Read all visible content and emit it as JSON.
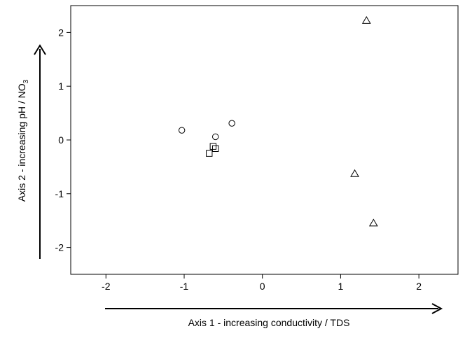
{
  "chart_data": {
    "type": "scatter",
    "title": "",
    "xlabel": "Axis 1 - increasing conductivity / TDS",
    "ylabel": "Axis 2 - increasing pH / NO",
    "ylabel_subscript": "3",
    "xlim": [
      -2.45,
      2.5
    ],
    "ylim": [
      -2.5,
      2.5
    ],
    "xticks": [
      -2,
      -1,
      0,
      1,
      2
    ],
    "yticks": [
      -2,
      -1,
      0,
      1,
      2
    ],
    "grid": false,
    "legend": "none",
    "series": [
      {
        "marker": "circle",
        "points": [
          {
            "x": -1.03,
            "y": 0.18
          },
          {
            "x": -0.6,
            "y": 0.06
          },
          {
            "x": -0.39,
            "y": 0.31
          }
        ]
      },
      {
        "marker": "square",
        "points": [
          {
            "x": -0.68,
            "y": -0.25
          },
          {
            "x": -0.63,
            "y": -0.12
          },
          {
            "x": -0.6,
            "y": -0.16
          }
        ]
      },
      {
        "marker": "triangle",
        "points": [
          {
            "x": 1.33,
            "y": 2.22
          },
          {
            "x": 1.18,
            "y": -0.63
          },
          {
            "x": 1.42,
            "y": -1.55
          }
        ]
      }
    ]
  }
}
